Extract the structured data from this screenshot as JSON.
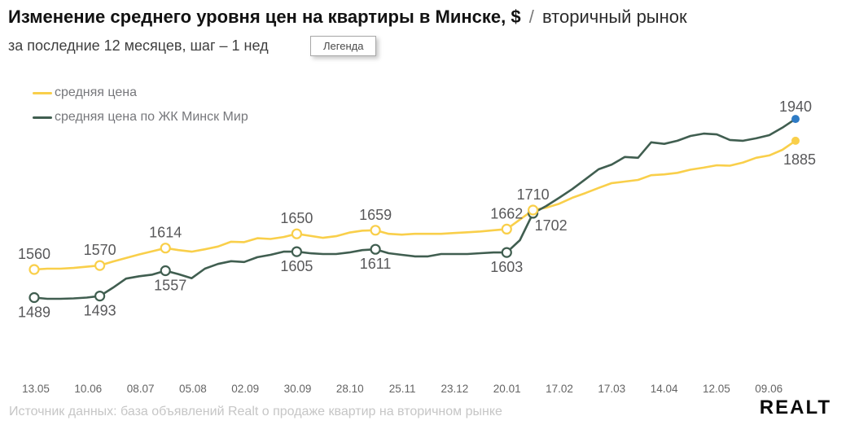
{
  "chart_data": {
    "type": "line",
    "title_main": "Изменение среднего уровня цен на квартиры в Минске, $",
    "title_sep": "/",
    "title_suffix": "вторичный рынок",
    "subtitle_visible": "за последние 12 месяцев, шаг – 1 нед",
    "tooltip_label": "Легенда",
    "legend_position": "top-left",
    "grid": false,
    "ylim": [
      1450,
      1975
    ],
    "x_step": "1 week",
    "x_ticks": [
      "13.05",
      "10.06",
      "08.07",
      "05.08",
      "02.09",
      "30.09",
      "28.10",
      "25.11",
      "23.12",
      "20.01",
      "17.02",
      "17.03",
      "14.04",
      "12.05",
      "09.06"
    ],
    "series": [
      {
        "name": "средняя цена",
        "color": "#f9cf4a",
        "values": [
          1560,
          1562,
          1562,
          1564,
          1567,
          1570,
          1580,
          1589,
          1598,
          1606,
          1614,
          1609,
          1605,
          1611,
          1618,
          1630,
          1629,
          1639,
          1637,
          1642,
          1650,
          1645,
          1640,
          1644,
          1653,
          1658,
          1659,
          1650,
          1648,
          1650,
          1650,
          1650,
          1652,
          1654,
          1656,
          1659,
          1662,
          1686,
          1710,
          1716,
          1726,
          1741,
          1753,
          1766,
          1778,
          1782,
          1786,
          1798,
          1800,
          1804,
          1812,
          1817,
          1823,
          1822,
          1830,
          1842,
          1848,
          1862,
          1885
        ],
        "labeled_points": [
          {
            "i": 0,
            "label": "1560",
            "pos": "above"
          },
          {
            "i": 5,
            "label": "1570",
            "pos": "above"
          },
          {
            "i": 10,
            "label": "1614",
            "pos": "above"
          },
          {
            "i": 20,
            "label": "1650",
            "pos": "above"
          },
          {
            "i": 26,
            "label": "1659",
            "pos": "above"
          },
          {
            "i": 36,
            "label": "1662",
            "pos": "above"
          },
          {
            "i": 38,
            "label": "1710",
            "pos": "above"
          },
          {
            "i": 58,
            "label": "1885",
            "pos": "below",
            "dx": 5,
            "dy": 29,
            "marker": "dot"
          }
        ]
      },
      {
        "name": "средняя цена по ЖК Минск Мир",
        "color": "#405e50",
        "values": [
          1489,
          1486,
          1486,
          1487,
          1489,
          1493,
          1514,
          1537,
          1543,
          1547,
          1557,
          1548,
          1538,
          1562,
          1574,
          1581,
          1579,
          1591,
          1597,
          1605,
          1605,
          1601,
          1599,
          1599,
          1603,
          1609,
          1611,
          1601,
          1597,
          1593,
          1593,
          1599,
          1599,
          1599,
          1601,
          1603,
          1603,
          1634,
          1702,
          1720,
          1741,
          1763,
          1788,
          1813,
          1825,
          1844,
          1842,
          1881,
          1877,
          1885,
          1897,
          1903,
          1901,
          1887,
          1885,
          1891,
          1899,
          1918,
          1940
        ],
        "labeled_points": [
          {
            "i": 0,
            "label": "1489",
            "pos": "below"
          },
          {
            "i": 5,
            "label": "1493",
            "pos": "below"
          },
          {
            "i": 10,
            "label": "1557",
            "pos": "below",
            "dx": 6
          },
          {
            "i": 20,
            "label": "1605",
            "pos": "below"
          },
          {
            "i": 26,
            "label": "1611",
            "pos": "below"
          },
          {
            "i": 36,
            "label": "1603",
            "pos": "below"
          },
          {
            "i": 38,
            "label": "1702",
            "pos": "below",
            "dx": 22,
            "dy": 21
          },
          {
            "i": 58,
            "label": "1940",
            "pos": "above",
            "dy": -9,
            "marker": "dot",
            "dot_color": "#2e7bc5"
          }
        ]
      }
    ]
  },
  "footer": {
    "source": "Источник данных: база объявлений Realt о продаже квартир на вторичном рынке",
    "logo_text": "Realt"
  }
}
